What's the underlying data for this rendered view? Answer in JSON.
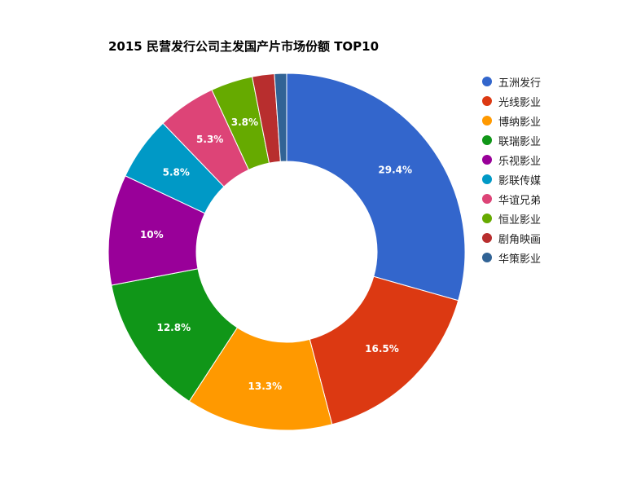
{
  "chart_data": {
    "type": "pie",
    "title": "2015 民营发行公司主发国产片市场份额 TOP10",
    "legend_position": "right",
    "slices": [
      {
        "name": "五洲发行",
        "value": 29.4,
        "label": "29.4%",
        "color": "#3366cc"
      },
      {
        "name": "光线影业",
        "value": 16.5,
        "label": "16.5%",
        "color": "#dc3912"
      },
      {
        "name": "博纳影业",
        "value": 13.3,
        "label": "13.3%",
        "color": "#ff9900"
      },
      {
        "name": "联瑞影业",
        "value": 12.8,
        "label": "12.8%",
        "color": "#109618"
      },
      {
        "name": "乐视影业",
        "value": 10.0,
        "label": "10%",
        "color": "#990099"
      },
      {
        "name": "影联传媒",
        "value": 5.8,
        "label": "5.8%",
        "color": "#0099c6"
      },
      {
        "name": "华谊兄弟",
        "value": 5.3,
        "label": "5.3%",
        "color": "#dd4477"
      },
      {
        "name": "恒业影业",
        "value": 3.8,
        "label": "3.8%",
        "color": "#66aa00"
      },
      {
        "name": "剧角映画",
        "value": 2.0,
        "label": "",
        "color": "#b82e2e"
      },
      {
        "name": "华策影业",
        "value": 1.1,
        "label": "",
        "color": "#316395"
      }
    ]
  }
}
